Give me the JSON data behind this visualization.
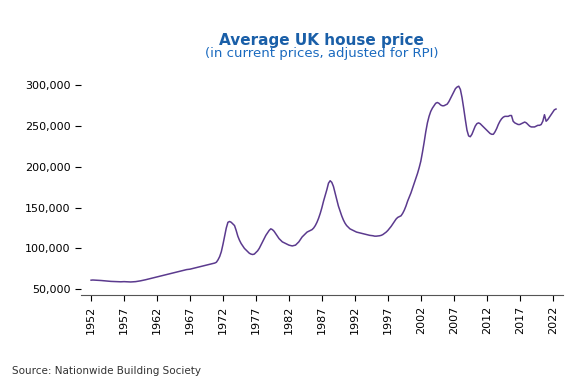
{
  "title": "Average UK house price",
  "subtitle": "(in current prices, adjusted for RPI)",
  "title_color": "#1a5fa8",
  "subtitle_color": "#1a6abf",
  "line_color": "#5b3a8e",
  "line_width": 1.1,
  "source_text": "Source: Nationwide Building Society",
  "background_color": "#ffffff",
  "yticks": [
    50000,
    100000,
    150000,
    200000,
    250000,
    300000
  ],
  "xtick_labels": [
    "1952",
    "1957",
    "1962",
    "1967",
    "1972",
    "1977",
    "1982",
    "1987",
    "1992",
    "1997",
    "2002",
    "2007",
    "2012",
    "2017",
    "2022"
  ],
  "ylim": [
    43000,
    312000
  ],
  "xlim": [
    1950.5,
    2023.5
  ],
  "data": [
    [
      1952.0,
      61000
    ],
    [
      1952.25,
      61200
    ],
    [
      1952.5,
      61100
    ],
    [
      1952.75,
      61000
    ],
    [
      1953.0,
      61000
    ],
    [
      1953.25,
      60800
    ],
    [
      1953.5,
      60600
    ],
    [
      1953.75,
      60400
    ],
    [
      1954.0,
      60200
    ],
    [
      1954.25,
      60000
    ],
    [
      1954.5,
      59800
    ],
    [
      1954.75,
      59600
    ],
    [
      1955.0,
      59500
    ],
    [
      1955.25,
      59400
    ],
    [
      1955.5,
      59300
    ],
    [
      1955.75,
      59200
    ],
    [
      1956.0,
      59100
    ],
    [
      1956.25,
      59000
    ],
    [
      1956.5,
      59000
    ],
    [
      1956.75,
      59100
    ],
    [
      1957.0,
      59200
    ],
    [
      1957.25,
      59100
    ],
    [
      1957.5,
      59000
    ],
    [
      1957.75,
      58900
    ],
    [
      1958.0,
      58800
    ],
    [
      1958.25,
      58900
    ],
    [
      1958.5,
      59000
    ],
    [
      1958.75,
      59200
    ],
    [
      1959.0,
      59500
    ],
    [
      1959.25,
      59800
    ],
    [
      1959.5,
      60200
    ],
    [
      1959.75,
      60600
    ],
    [
      1960.0,
      61000
    ],
    [
      1960.25,
      61500
    ],
    [
      1960.5,
      62000
    ],
    [
      1960.75,
      62500
    ],
    [
      1961.0,
      63000
    ],
    [
      1961.25,
      63500
    ],
    [
      1961.5,
      64000
    ],
    [
      1961.75,
      64500
    ],
    [
      1962.0,
      65000
    ],
    [
      1962.25,
      65500
    ],
    [
      1962.5,
      66000
    ],
    [
      1962.75,
      66500
    ],
    [
      1963.0,
      67000
    ],
    [
      1963.25,
      67500
    ],
    [
      1963.5,
      68000
    ],
    [
      1963.75,
      68500
    ],
    [
      1964.0,
      69000
    ],
    [
      1964.25,
      69500
    ],
    [
      1964.5,
      70000
    ],
    [
      1964.75,
      70500
    ],
    [
      1965.0,
      71000
    ],
    [
      1965.25,
      71500
    ],
    [
      1965.5,
      72000
    ],
    [
      1965.75,
      72500
    ],
    [
      1966.0,
      73000
    ],
    [
      1966.25,
      73500
    ],
    [
      1966.5,
      74000
    ],
    [
      1966.75,
      74200
    ],
    [
      1967.0,
      74500
    ],
    [
      1967.25,
      75000
    ],
    [
      1967.5,
      75500
    ],
    [
      1967.75,
      76000
    ],
    [
      1968.0,
      76500
    ],
    [
      1968.25,
      77000
    ],
    [
      1968.5,
      77500
    ],
    [
      1968.75,
      78000
    ],
    [
      1969.0,
      78500
    ],
    [
      1969.25,
      79000
    ],
    [
      1969.5,
      79500
    ],
    [
      1969.75,
      80000
    ],
    [
      1970.0,
      80500
    ],
    [
      1970.25,
      81000
    ],
    [
      1970.5,
      81500
    ],
    [
      1970.75,
      82000
    ],
    [
      1971.0,
      83000
    ],
    [
      1971.25,
      86000
    ],
    [
      1971.5,
      90000
    ],
    [
      1971.75,
      96000
    ],
    [
      1972.0,
      105000
    ],
    [
      1972.25,
      115000
    ],
    [
      1972.5,
      125000
    ],
    [
      1972.75,
      132000
    ],
    [
      1973.0,
      133000
    ],
    [
      1973.25,
      132000
    ],
    [
      1973.5,
      130000
    ],
    [
      1973.75,
      128000
    ],
    [
      1974.0,
      122000
    ],
    [
      1974.25,
      115000
    ],
    [
      1974.5,
      110000
    ],
    [
      1974.75,
      106000
    ],
    [
      1975.0,
      103000
    ],
    [
      1975.25,
      100000
    ],
    [
      1975.5,
      98000
    ],
    [
      1975.75,
      96000
    ],
    [
      1976.0,
      94000
    ],
    [
      1976.25,
      93000
    ],
    [
      1976.5,
      92500
    ],
    [
      1976.75,
      93000
    ],
    [
      1977.0,
      95000
    ],
    [
      1977.25,
      97000
    ],
    [
      1977.5,
      100000
    ],
    [
      1977.75,
      104000
    ],
    [
      1978.0,
      108000
    ],
    [
      1978.25,
      112000
    ],
    [
      1978.5,
      116000
    ],
    [
      1978.75,
      119000
    ],
    [
      1979.0,
      122000
    ],
    [
      1979.25,
      124000
    ],
    [
      1979.5,
      123000
    ],
    [
      1979.75,
      121000
    ],
    [
      1980.0,
      118000
    ],
    [
      1980.25,
      115000
    ],
    [
      1980.5,
      112000
    ],
    [
      1980.75,
      110000
    ],
    [
      1981.0,
      108000
    ],
    [
      1981.25,
      107000
    ],
    [
      1981.5,
      106000
    ],
    [
      1981.75,
      105000
    ],
    [
      1982.0,
      104000
    ],
    [
      1982.25,
      103500
    ],
    [
      1982.5,
      103000
    ],
    [
      1982.75,
      103500
    ],
    [
      1983.0,
      104000
    ],
    [
      1983.25,
      106000
    ],
    [
      1983.5,
      108000
    ],
    [
      1983.75,
      111000
    ],
    [
      1984.0,
      114000
    ],
    [
      1984.25,
      116000
    ],
    [
      1984.5,
      118000
    ],
    [
      1984.75,
      120000
    ],
    [
      1985.0,
      121000
    ],
    [
      1985.25,
      122000
    ],
    [
      1985.5,
      123000
    ],
    [
      1985.75,
      125000
    ],
    [
      1986.0,
      128000
    ],
    [
      1986.25,
      132000
    ],
    [
      1986.5,
      137000
    ],
    [
      1986.75,
      143000
    ],
    [
      1987.0,
      150000
    ],
    [
      1987.25,
      158000
    ],
    [
      1987.5,
      165000
    ],
    [
      1987.75,
      172000
    ],
    [
      1988.0,
      180000
    ],
    [
      1988.25,
      183000
    ],
    [
      1988.5,
      181000
    ],
    [
      1988.75,
      176000
    ],
    [
      1989.0,
      168000
    ],
    [
      1989.25,
      160000
    ],
    [
      1989.5,
      152000
    ],
    [
      1989.75,
      146000
    ],
    [
      1990.0,
      140000
    ],
    [
      1990.25,
      135000
    ],
    [
      1990.5,
      131000
    ],
    [
      1990.75,
      128000
    ],
    [
      1991.0,
      126000
    ],
    [
      1991.25,
      124000
    ],
    [
      1991.5,
      123000
    ],
    [
      1991.75,
      122000
    ],
    [
      1992.0,
      121000
    ],
    [
      1992.25,
      120000
    ],
    [
      1992.5,
      119500
    ],
    [
      1992.75,
      119000
    ],
    [
      1993.0,
      118500
    ],
    [
      1993.25,
      118000
    ],
    [
      1993.5,
      117500
    ],
    [
      1993.75,
      117000
    ],
    [
      1994.0,
      116500
    ],
    [
      1994.25,
      116000
    ],
    [
      1994.5,
      115800
    ],
    [
      1994.75,
      115500
    ],
    [
      1995.0,
      115000
    ],
    [
      1995.25,
      115000
    ],
    [
      1995.5,
      115200
    ],
    [
      1995.75,
      115500
    ],
    [
      1996.0,
      116000
    ],
    [
      1996.25,
      117000
    ],
    [
      1996.5,
      118500
    ],
    [
      1996.75,
      120000
    ],
    [
      1997.0,
      122000
    ],
    [
      1997.25,
      124500
    ],
    [
      1997.5,
      127000
    ],
    [
      1997.75,
      130000
    ],
    [
      1998.0,
      133000
    ],
    [
      1998.25,
      136000
    ],
    [
      1998.5,
      138000
    ],
    [
      1998.75,
      139000
    ],
    [
      1999.0,
      140000
    ],
    [
      1999.25,
      143000
    ],
    [
      1999.5,
      147000
    ],
    [
      1999.75,
      152000
    ],
    [
      2000.0,
      158000
    ],
    [
      2000.25,
      163000
    ],
    [
      2000.5,
      168000
    ],
    [
      2000.75,
      174000
    ],
    [
      2001.0,
      180000
    ],
    [
      2001.25,
      186000
    ],
    [
      2001.5,
      192000
    ],
    [
      2001.75,
      199000
    ],
    [
      2002.0,
      207000
    ],
    [
      2002.25,
      218000
    ],
    [
      2002.5,
      230000
    ],
    [
      2002.75,
      243000
    ],
    [
      2003.0,
      254000
    ],
    [
      2003.25,
      262000
    ],
    [
      2003.5,
      268000
    ],
    [
      2003.75,
      272000
    ],
    [
      2004.0,
      275000
    ],
    [
      2004.25,
      278000
    ],
    [
      2004.5,
      279000
    ],
    [
      2004.75,
      278000
    ],
    [
      2005.0,
      276000
    ],
    [
      2005.25,
      275000
    ],
    [
      2005.5,
      275000
    ],
    [
      2005.75,
      276000
    ],
    [
      2006.0,
      277000
    ],
    [
      2006.25,
      280000
    ],
    [
      2006.5,
      284000
    ],
    [
      2006.75,
      288000
    ],
    [
      2007.0,
      292000
    ],
    [
      2007.25,
      296000
    ],
    [
      2007.5,
      298000
    ],
    [
      2007.75,
      299000
    ],
    [
      2008.0,
      295000
    ],
    [
      2008.25,
      285000
    ],
    [
      2008.5,
      272000
    ],
    [
      2008.75,
      258000
    ],
    [
      2009.0,
      245000
    ],
    [
      2009.25,
      238000
    ],
    [
      2009.5,
      237000
    ],
    [
      2009.75,
      240000
    ],
    [
      2010.0,
      245000
    ],
    [
      2010.25,
      250000
    ],
    [
      2010.5,
      253000
    ],
    [
      2010.75,
      254000
    ],
    [
      2011.0,
      253000
    ],
    [
      2011.25,
      251000
    ],
    [
      2011.5,
      249000
    ],
    [
      2011.75,
      247000
    ],
    [
      2012.0,
      245000
    ],
    [
      2012.25,
      243000
    ],
    [
      2012.5,
      241000
    ],
    [
      2012.75,
      240000
    ],
    [
      2013.0,
      240000
    ],
    [
      2013.25,
      243000
    ],
    [
      2013.5,
      247000
    ],
    [
      2013.75,
      252000
    ],
    [
      2014.0,
      256000
    ],
    [
      2014.25,
      259000
    ],
    [
      2014.5,
      261000
    ],
    [
      2014.75,
      262000
    ],
    [
      2015.0,
      262000
    ],
    [
      2015.25,
      262000
    ],
    [
      2015.5,
      263000
    ],
    [
      2015.75,
      263000
    ],
    [
      2016.0,
      256000
    ],
    [
      2016.25,
      254000
    ],
    [
      2016.5,
      253000
    ],
    [
      2016.75,
      252000
    ],
    [
      2017.0,
      252000
    ],
    [
      2017.25,
      253000
    ],
    [
      2017.5,
      254000
    ],
    [
      2017.75,
      255000
    ],
    [
      2018.0,
      254000
    ],
    [
      2018.25,
      252000
    ],
    [
      2018.5,
      250000
    ],
    [
      2018.75,
      249000
    ],
    [
      2019.0,
      249000
    ],
    [
      2019.25,
      249000
    ],
    [
      2019.5,
      250000
    ],
    [
      2019.75,
      251000
    ],
    [
      2020.0,
      251000
    ],
    [
      2020.25,
      252000
    ],
    [
      2020.5,
      256000
    ],
    [
      2020.75,
      264000
    ],
    [
      2021.0,
      256000
    ],
    [
      2021.25,
      258000
    ],
    [
      2021.5,
      261000
    ],
    [
      2021.75,
      264000
    ],
    [
      2022.0,
      267000
    ],
    [
      2022.25,
      270000
    ],
    [
      2022.5,
      271000
    ]
  ]
}
